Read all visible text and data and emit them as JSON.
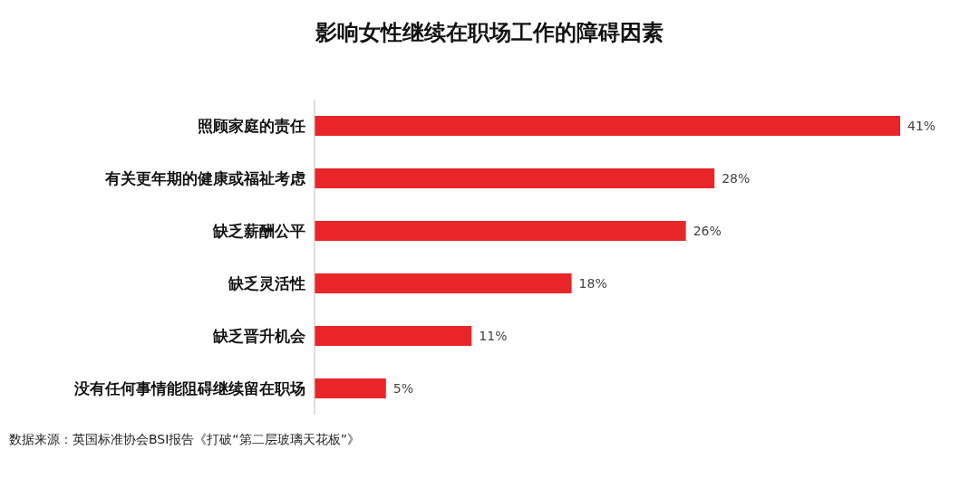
{
  "chart_data": {
    "type": "bar",
    "orientation": "horizontal",
    "title": "影响女性继续在职场工作的障碍因素",
    "categories": [
      "照顾家庭的责任",
      "有关更年期的健康或福祉考虑",
      "缺乏薪酬公平",
      "缺乏灵活性",
      "缺乏晋升机会",
      "没有任何事情能阻碍继续留在职场"
    ],
    "values": [
      41,
      28,
      26,
      18,
      11,
      5
    ],
    "value_labels": [
      "41%",
      "28%",
      "26%",
      "18%",
      "11%",
      "5%"
    ],
    "color": "#e8262a",
    "annotations": [
      "数据来源：英国标准协会BSI报告《打破“第二层玻璃天花板”》"
    ]
  }
}
